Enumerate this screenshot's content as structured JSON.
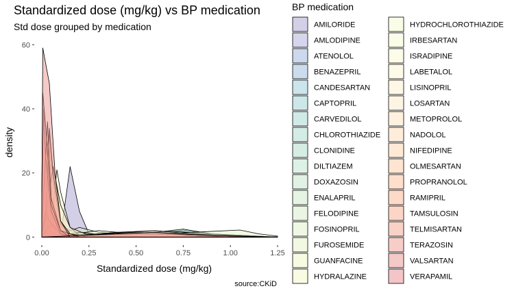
{
  "chart_data": {
    "type": "area",
    "title": "Standardized dose (mg/kg) vs BP medication",
    "subtitle": "Std dose grouped by medication",
    "xlabel": "Standardized dose (mg/kg)",
    "ylabel": "density",
    "caption": "source:CKiD",
    "xlim": [
      -0.04,
      1.25
    ],
    "ylim": [
      -2.5,
      62
    ],
    "x_ticks": [
      0.0,
      0.25,
      0.5,
      0.75,
      1.0,
      1.25
    ],
    "x_tick_labels": [
      "0.00",
      "0.25",
      "0.50",
      "0.75",
      "1.00",
      "1.25"
    ],
    "y_ticks": [
      0,
      20,
      40,
      60
    ],
    "y_tick_labels": [
      "0",
      "20",
      "40",
      "60"
    ],
    "grid": false,
    "legend_position": "right",
    "legend_title": "BP medication",
    "series": [
      {
        "name": "AMILORIDE",
        "color": "#a7a0d0",
        "points": [
          [
            0.0,
            0
          ],
          [
            0.1,
            0.5
          ],
          [
            0.15,
            22
          ],
          [
            0.2,
            8
          ],
          [
            0.25,
            1
          ],
          [
            0.3,
            0
          ]
        ]
      },
      {
        "name": "AMLODIPINE",
        "color": "#abacd8",
        "points": [
          [
            0.0,
            0.5
          ],
          [
            0.05,
            3
          ],
          [
            0.1,
            1.5
          ],
          [
            0.15,
            0.8
          ],
          [
            0.3,
            0.3
          ],
          [
            0.5,
            0.2
          ],
          [
            1.0,
            0.1
          ],
          [
            1.25,
            0
          ]
        ]
      },
      {
        "name": "ATENOLOL",
        "color": "#9ab2d8",
        "points": [
          [
            0.0,
            0
          ],
          [
            0.2,
            0.5
          ],
          [
            0.4,
            1.5
          ],
          [
            0.6,
            1.2
          ],
          [
            0.8,
            0.4
          ],
          [
            1.0,
            0.2
          ],
          [
            1.25,
            0
          ]
        ]
      },
      {
        "name": "BENAZEPRIL",
        "color": "#97bcdb",
        "points": [
          [
            0.0,
            0
          ],
          [
            0.02,
            2
          ],
          [
            0.05,
            1
          ],
          [
            0.1,
            0.3
          ],
          [
            0.2,
            0
          ]
        ]
      },
      {
        "name": "CANDESARTAN",
        "color": "#9acbdc",
        "points": [
          [
            0.0,
            0
          ],
          [
            0.02,
            1
          ],
          [
            0.06,
            3
          ],
          [
            0.12,
            1.5
          ],
          [
            0.2,
            0
          ]
        ]
      },
      {
        "name": "CAPTOPRIL",
        "color": "#9bcfd4",
        "points": [
          [
            0.0,
            0
          ],
          [
            0.2,
            0.5
          ],
          [
            0.4,
            1.5
          ],
          [
            0.6,
            2
          ],
          [
            0.8,
            1
          ],
          [
            1.0,
            0.3
          ],
          [
            1.25,
            0
          ]
        ]
      },
      {
        "name": "CARVEDILOL",
        "color": "#a2d5d2",
        "points": [
          [
            0.0,
            0
          ],
          [
            0.5,
            0.3
          ],
          [
            0.75,
            2.2
          ],
          [
            0.9,
            0.8
          ],
          [
            1.1,
            0.3
          ],
          [
            1.25,
            0
          ]
        ]
      },
      {
        "name": "CHLOROTHIAZIDE",
        "color": "#a8d9cd",
        "points": [
          [
            0.0,
            0
          ],
          [
            0.3,
            0.2
          ],
          [
            0.6,
            1.5
          ],
          [
            0.75,
            2.5
          ],
          [
            0.9,
            1
          ],
          [
            1.25,
            0
          ]
        ]
      },
      {
        "name": "CLONIDINE",
        "color": "#acdcc6",
        "points": [
          [
            0.0,
            0.5
          ],
          [
            0.01,
            3
          ],
          [
            0.03,
            1
          ],
          [
            0.06,
            0
          ]
        ]
      },
      {
        "name": "DILTIAZEM",
        "color": "#bde4cd",
        "points": [
          [
            0.0,
            0
          ],
          [
            0.2,
            0.8
          ],
          [
            0.4,
            1
          ],
          [
            0.7,
            1.8
          ],
          [
            0.9,
            1
          ],
          [
            1.25,
            0
          ]
        ]
      },
      {
        "name": "DOXAZOSIN",
        "color": "#c4e6cb",
        "points": [
          [
            0.0,
            1
          ],
          [
            0.02,
            5
          ],
          [
            0.05,
            2
          ],
          [
            0.1,
            0.2
          ],
          [
            0.15,
            0
          ]
        ]
      },
      {
        "name": "ENALAPRIL",
        "color": "#cdeac9",
        "points": [
          [
            0.0,
            0.5
          ],
          [
            0.04,
            3
          ],
          [
            0.08,
            6
          ],
          [
            0.12,
            3
          ],
          [
            0.2,
            0.5
          ],
          [
            0.3,
            0
          ]
        ]
      },
      {
        "name": "FELODIPINE",
        "color": "#d6edc8",
        "points": [
          [
            0.0,
            0
          ],
          [
            0.1,
            1
          ],
          [
            0.2,
            3
          ],
          [
            0.3,
            1.5
          ],
          [
            0.5,
            0.5
          ],
          [
            0.7,
            0
          ]
        ]
      },
      {
        "name": "FOSINOPRIL",
        "color": "#dff1c7",
        "points": [
          [
            0.0,
            0
          ],
          [
            0.1,
            0.5
          ],
          [
            0.3,
            2
          ],
          [
            0.5,
            1
          ],
          [
            0.7,
            0.3
          ],
          [
            1.0,
            0
          ]
        ]
      },
      {
        "name": "FUROSEMIDE",
        "color": "#e6f4c5",
        "points": [
          [
            0.0,
            0
          ],
          [
            0.3,
            0.3
          ],
          [
            0.6,
            1
          ],
          [
            0.8,
            1.5
          ],
          [
            1.05,
            2.2
          ],
          [
            1.15,
            1
          ],
          [
            1.25,
            0.3
          ]
        ]
      },
      {
        "name": "GUANFACINE",
        "color": "#eef8c6",
        "points": [
          [
            0.0,
            1
          ],
          [
            0.02,
            6
          ],
          [
            0.05,
            3
          ],
          [
            0.1,
            1
          ],
          [
            0.2,
            0
          ]
        ]
      },
      {
        "name": "HYDRALAZINE",
        "color": "#f3fac8",
        "points": [
          [
            0.0,
            0
          ],
          [
            0.1,
            0.5
          ],
          [
            0.2,
            1.5
          ],
          [
            0.3,
            0.8
          ],
          [
            0.5,
            0.2
          ],
          [
            0.7,
            0
          ]
        ]
      },
      {
        "name": "HYDROCHLOROTHIAZIDE",
        "color": "#f4fbd0",
        "points": [
          [
            0.0,
            0.5
          ],
          [
            0.05,
            5
          ],
          [
            0.08,
            21
          ],
          [
            0.1,
            14
          ],
          [
            0.15,
            3
          ],
          [
            0.2,
            0.5
          ],
          [
            0.3,
            0
          ]
        ]
      },
      {
        "name": "IRBESARTAN",
        "color": "#f7fbd2",
        "points": [
          [
            0.0,
            1
          ],
          [
            0.02,
            7
          ],
          [
            0.05,
            3
          ],
          [
            0.1,
            0.5
          ],
          [
            0.2,
            0
          ]
        ]
      },
      {
        "name": "ISRADIPINE",
        "color": "#fbfad3",
        "points": [
          [
            0.0,
            0
          ],
          [
            0.2,
            0.5
          ],
          [
            0.4,
            1.5
          ],
          [
            0.6,
            1
          ],
          [
            0.8,
            0.3
          ],
          [
            1.0,
            0
          ]
        ]
      },
      {
        "name": "LABETALOL",
        "color": "#fdf5d2",
        "points": [
          [
            0.0,
            0
          ],
          [
            0.1,
            0.5
          ],
          [
            0.3,
            1
          ],
          [
            0.5,
            1.5
          ],
          [
            0.7,
            1
          ],
          [
            1.0,
            0.3
          ],
          [
            1.25,
            0
          ]
        ]
      },
      {
        "name": "LISINOPRIL",
        "color": "#fdefcc",
        "points": [
          [
            0.0,
            3
          ],
          [
            0.02,
            25
          ],
          [
            0.04,
            32
          ],
          [
            0.06,
            18
          ],
          [
            0.1,
            4
          ],
          [
            0.15,
            1
          ],
          [
            0.3,
            0
          ]
        ]
      },
      {
        "name": "LOSARTAN",
        "color": "#feeac7",
        "points": [
          [
            0.0,
            2
          ],
          [
            0.03,
            10
          ],
          [
            0.06,
            22
          ],
          [
            0.1,
            10
          ],
          [
            0.15,
            3
          ],
          [
            0.25,
            0.5
          ],
          [
            0.4,
            0
          ]
        ]
      },
      {
        "name": "METOPROLOL",
        "color": "#fee3bf",
        "points": [
          [
            0.0,
            0
          ],
          [
            0.2,
            0.5
          ],
          [
            0.4,
            1.2
          ],
          [
            0.6,
            2
          ],
          [
            0.8,
            1
          ],
          [
            1.0,
            0.3
          ],
          [
            1.25,
            0
          ]
        ]
      },
      {
        "name": "NADOLOL",
        "color": "#fedcb6",
        "points": [
          [
            0.0,
            0
          ],
          [
            0.2,
            0.5
          ],
          [
            0.5,
            1
          ],
          [
            0.8,
            0.8
          ],
          [
            1.25,
            0
          ]
        ]
      },
      {
        "name": "NIFEDIPINE",
        "color": "#fdd3ad",
        "points": [
          [
            0.0,
            1
          ],
          [
            0.02,
            6
          ],
          [
            0.04,
            34
          ],
          [
            0.06,
            20
          ],
          [
            0.1,
            5
          ],
          [
            0.15,
            1
          ],
          [
            0.25,
            0
          ]
        ]
      },
      {
        "name": "OLMESARTAN",
        "color": "#fdcaa3",
        "points": [
          [
            0.0,
            0
          ],
          [
            0.02,
            2
          ],
          [
            0.05,
            4
          ],
          [
            0.1,
            1
          ],
          [
            0.2,
            0
          ]
        ]
      },
      {
        "name": "PROPRANOLOL",
        "color": "#fcc09a",
        "points": [
          [
            0.0,
            0
          ],
          [
            0.2,
            0.5
          ],
          [
            0.4,
            1
          ],
          [
            0.6,
            1.5
          ],
          [
            0.8,
            0.5
          ],
          [
            1.0,
            0
          ]
        ]
      },
      {
        "name": "RAMIPRIL",
        "color": "#fbb592",
        "points": [
          [
            0.0,
            1
          ],
          [
            0.02,
            8
          ],
          [
            0.04,
            5
          ],
          [
            0.1,
            1
          ],
          [
            0.2,
            0
          ]
        ]
      },
      {
        "name": "TAMSULOSIN",
        "color": "#f9ac8e",
        "points": [
          [
            0.0,
            3
          ],
          [
            0.01,
            15
          ],
          [
            0.03,
            36
          ],
          [
            0.05,
            12
          ],
          [
            0.1,
            2
          ],
          [
            0.2,
            0
          ]
        ]
      },
      {
        "name": "TELMISARTAN",
        "color": "#f6a38e",
        "points": [
          [
            0.0,
            10
          ],
          [
            0.01,
            40
          ],
          [
            0.02,
            25
          ],
          [
            0.05,
            8
          ],
          [
            0.1,
            1
          ],
          [
            0.15,
            0
          ]
        ]
      },
      {
        "name": "TERAZOSIN",
        "color": "#f19b8f",
        "points": [
          [
            0.0,
            15
          ],
          [
            0.005,
            45
          ],
          [
            0.02,
            35
          ],
          [
            0.05,
            10
          ],
          [
            0.1,
            2
          ],
          [
            0.15,
            0
          ]
        ]
      },
      {
        "name": "VALSARTAN",
        "color": "#ec938f",
        "points": [
          [
            0.0,
            10
          ],
          [
            0.005,
            59
          ],
          [
            0.04,
            48
          ],
          [
            0.07,
            20
          ],
          [
            0.1,
            5
          ],
          [
            0.15,
            0
          ]
        ]
      },
      {
        "name": "VERAPAMIL",
        "color": "#e88b8f",
        "points": [
          [
            0.0,
            0
          ],
          [
            0.2,
            0.5
          ],
          [
            0.4,
            1
          ],
          [
            0.6,
            1.5
          ],
          [
            0.8,
            0.8
          ],
          [
            1.0,
            0.3
          ],
          [
            1.25,
            0
          ]
        ]
      }
    ]
  }
}
